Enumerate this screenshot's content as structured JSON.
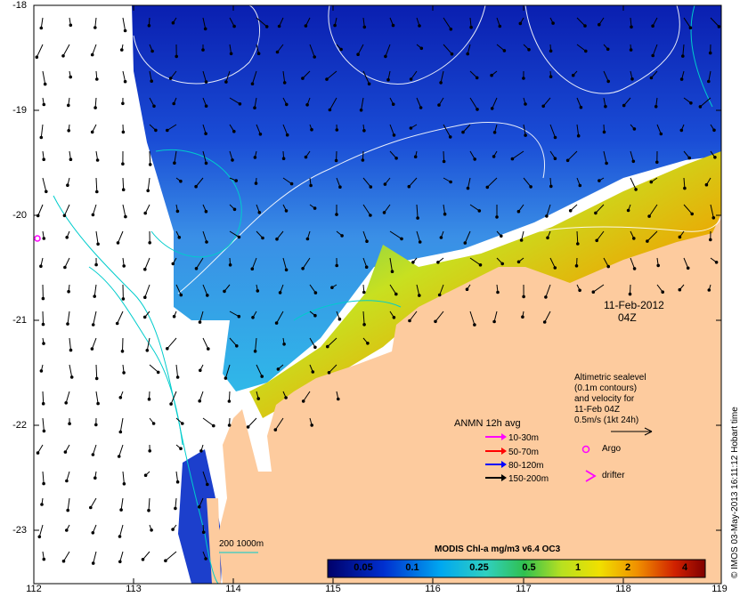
{
  "map": {
    "date_label": "11-Feb-2012",
    "time_label": "04Z",
    "y_ticks": [
      "-18",
      "-19",
      "-20",
      "-21",
      "-22",
      "-23"
    ],
    "x_ticks": [
      "112",
      "113",
      "114",
      "115",
      "116",
      "117",
      "118",
      "119"
    ],
    "altimetry_note": [
      "Altimetric sealevel",
      "(0.1m contours)",
      "and velocity for",
      "11-Feb 04Z",
      "0.5m/s (1kt 24h)"
    ],
    "argo_label": "Argo",
    "drifter_label": "drifter",
    "anmn_title": "ANMN 12h avg",
    "anmn_legend": [
      {
        "label": "10-30m",
        "color": "#ff00ff"
      },
      {
        "label": "50-70m",
        "color": "#ff0000"
      },
      {
        "label": "80-120m",
        "color": "#0000ff"
      },
      {
        "label": "150-200m",
        "color": "#000000"
      }
    ],
    "depth_contour_label": "200  1000m",
    "colorbar_title": "MODIS Chl-a mg/m3 v6.4 OC3",
    "colorbar_ticks": [
      "0.05",
      "0.1",
      "0.25",
      "0.5",
      "1",
      "2",
      "4"
    ],
    "credit": "© IMOS 03-May-2013 16:11:12 Hobart time",
    "colors": {
      "land": "#fdcb9e",
      "contour": "#00cccc",
      "argo": "#ff00ff"
    }
  }
}
